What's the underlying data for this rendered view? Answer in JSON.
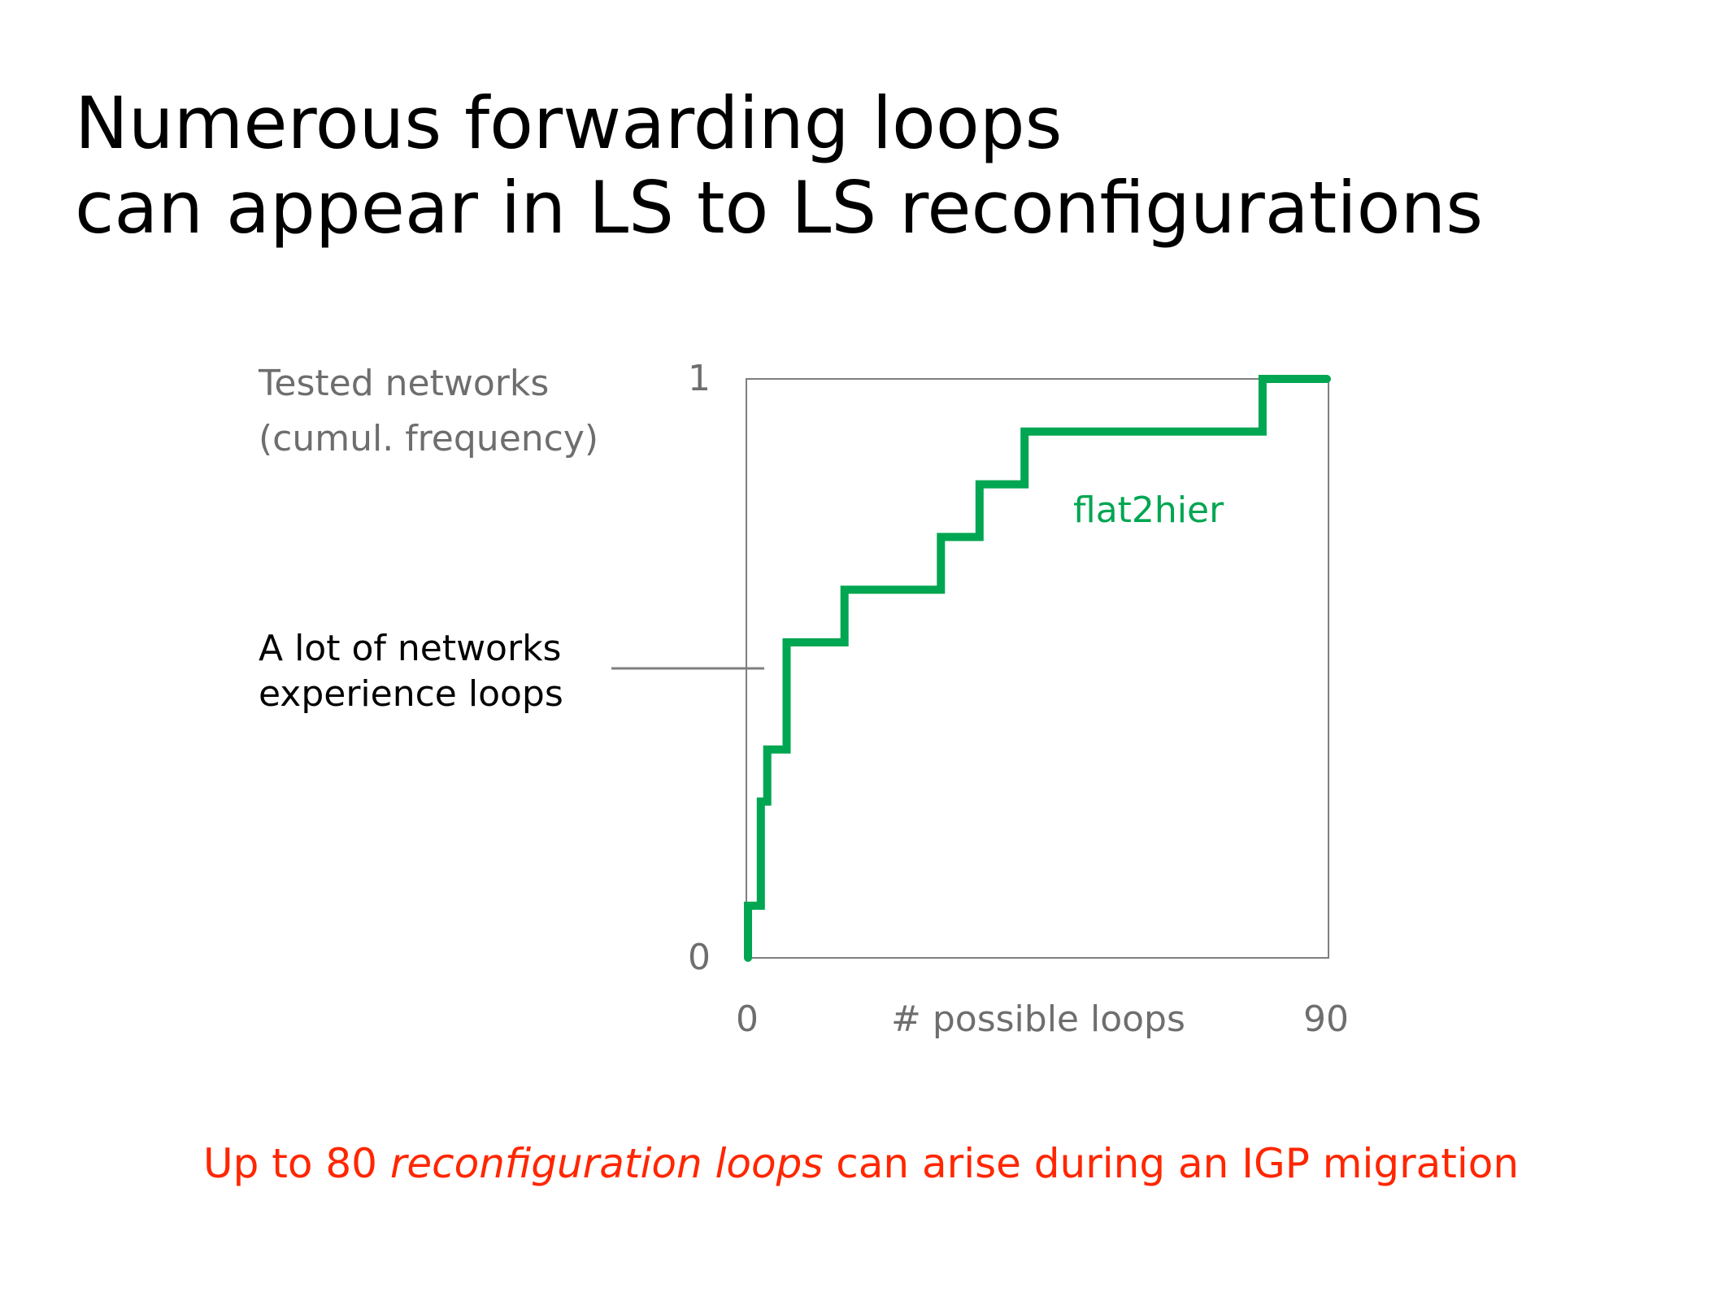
{
  "slide": {
    "title_line1": "Numerous forwarding loops",
    "title_line2": "can appear in LS to LS reconfigurations",
    "annotation_line1": "A lot of networks",
    "annotation_line2": "experience loops",
    "footer_pre": "Up to 80 ",
    "footer_em": "reconfiguration loops",
    "footer_post": " can arise during an IGP migration"
  },
  "colors": {
    "series": "#00a651",
    "footer": "#ff2600",
    "axis_text": "#6e6e6e",
    "frame": "#7f7f7f"
  },
  "chart_data": {
    "type": "line",
    "step": true,
    "ylabel_line1": "Tested networks",
    "ylabel_line2": "(cumul. frequency)",
    "xlabel": "# possible loops",
    "x_ticks": [
      "0",
      "90"
    ],
    "y_ticks": [
      "0",
      "1"
    ],
    "xlim": [
      0,
      90
    ],
    "ylim": [
      0,
      1
    ],
    "grid": false,
    "series": [
      {
        "name": "flat2hier",
        "x": [
          0,
          0,
          2,
          2,
          3,
          3,
          6,
          6,
          15,
          15,
          30,
          30,
          36,
          36,
          43,
          43,
          80,
          80,
          90
        ],
        "y": [
          0,
          0.09,
          0.09,
          0.27,
          0.27,
          0.36,
          0.36,
          0.545,
          0.545,
          0.636,
          0.636,
          0.727,
          0.727,
          0.818,
          0.818,
          0.909,
          0.909,
          1,
          1
        ]
      }
    ]
  }
}
